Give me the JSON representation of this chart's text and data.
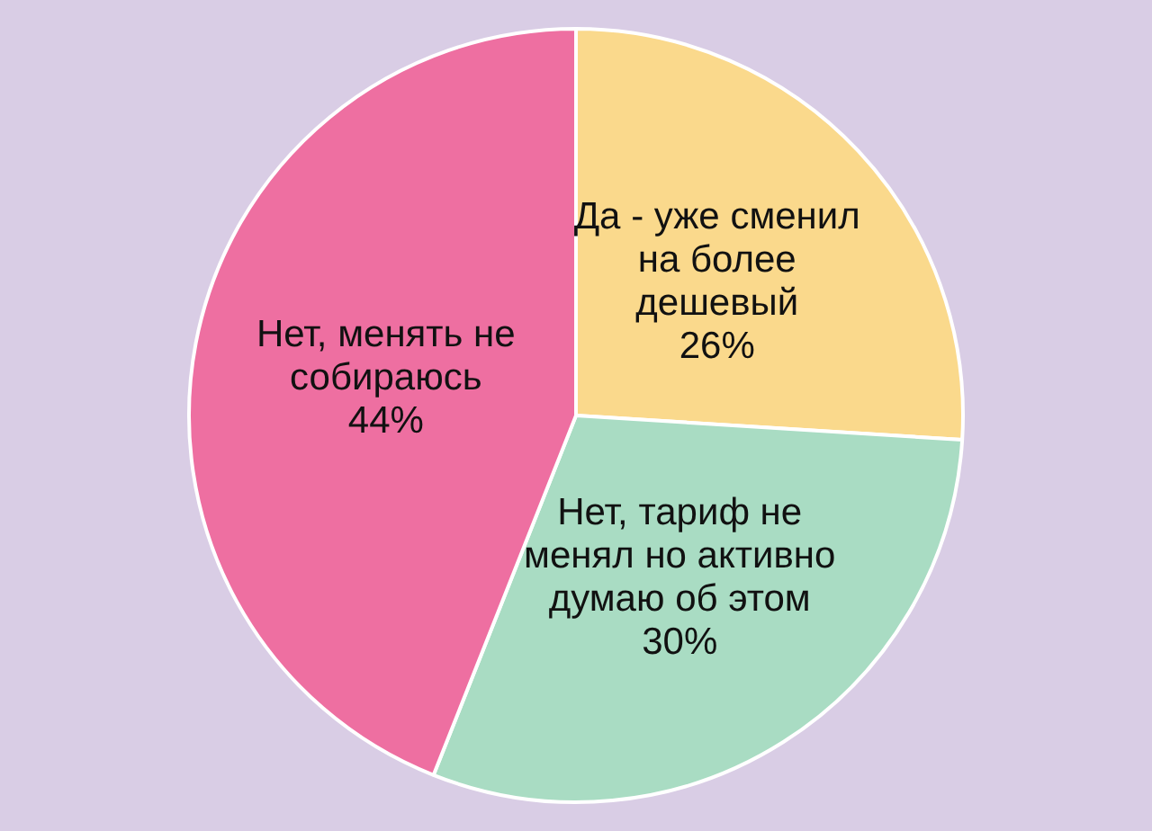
{
  "chart_data": {
    "type": "pie",
    "categories": [
      "Да - уже сменил на более дешевый",
      "Нет, тариф не менял но активно думаю об этом",
      "Нет, менять не собираюсь"
    ],
    "values": [
      26,
      30,
      44
    ],
    "value_labels": [
      "26%",
      "30%",
      "44%"
    ],
    "colors": [
      "#fad98c",
      "#a9dcc3",
      "#ee6fa1"
    ],
    "legend": false
  }
}
